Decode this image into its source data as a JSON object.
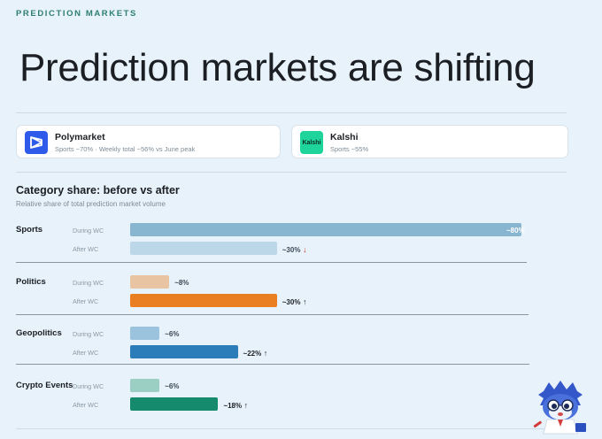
{
  "header": {
    "eyebrow": "PREDICTION MARKETS",
    "title": "Prediction markets are shifting"
  },
  "cards": [
    {
      "name": "Polymarket",
      "sub": "Sports ~70% · Weekly total ~56% vs June peak",
      "logo_color": "#2f5bea",
      "icon": "polymarket-logo"
    },
    {
      "name": "Kalshi",
      "sub": "Sports ~55%",
      "logo_color": "#1fd49a",
      "logo_text": "Kalshi",
      "icon": "kalshi-logo"
    }
  ],
  "section": {
    "title": "Category share: before vs after",
    "subtitle": "Relative share of total prediction market volume"
  },
  "row_labels": {
    "during": "During WC",
    "after": "After WC"
  },
  "chart_data": {
    "type": "bar",
    "title": "Category share: before vs after",
    "subtitle": "Relative share of total prediction market volume",
    "categories": [
      "Sports",
      "Politics",
      "Geopolitics",
      "Crypto Events"
    ],
    "series": [
      {
        "name": "During WC",
        "values": [
          80,
          8,
          6,
          6
        ],
        "labels": [
          "~80%",
          "~8%",
          "~6%",
          "~6%"
        ]
      },
      {
        "name": "After WC",
        "values": [
          30,
          30,
          22,
          18
        ],
        "labels": [
          "~30%",
          "~30%",
          "~22%",
          "~18%"
        ],
        "trend": [
          "↓",
          "↑",
          "↑",
          "↑"
        ]
      }
    ],
    "colors": {
      "Sports": [
        "#88b6d0",
        "#bcd8e8"
      ],
      "Politics": [
        "#e9c4a3",
        "#ea7f22"
      ],
      "Geopolitics": [
        "#9cc3dd",
        "#2b7db9"
      ],
      "Crypto Events": [
        "#9ccfc4",
        "#168a6d"
      ]
    },
    "xlim": [
      0,
      80
    ]
  }
}
